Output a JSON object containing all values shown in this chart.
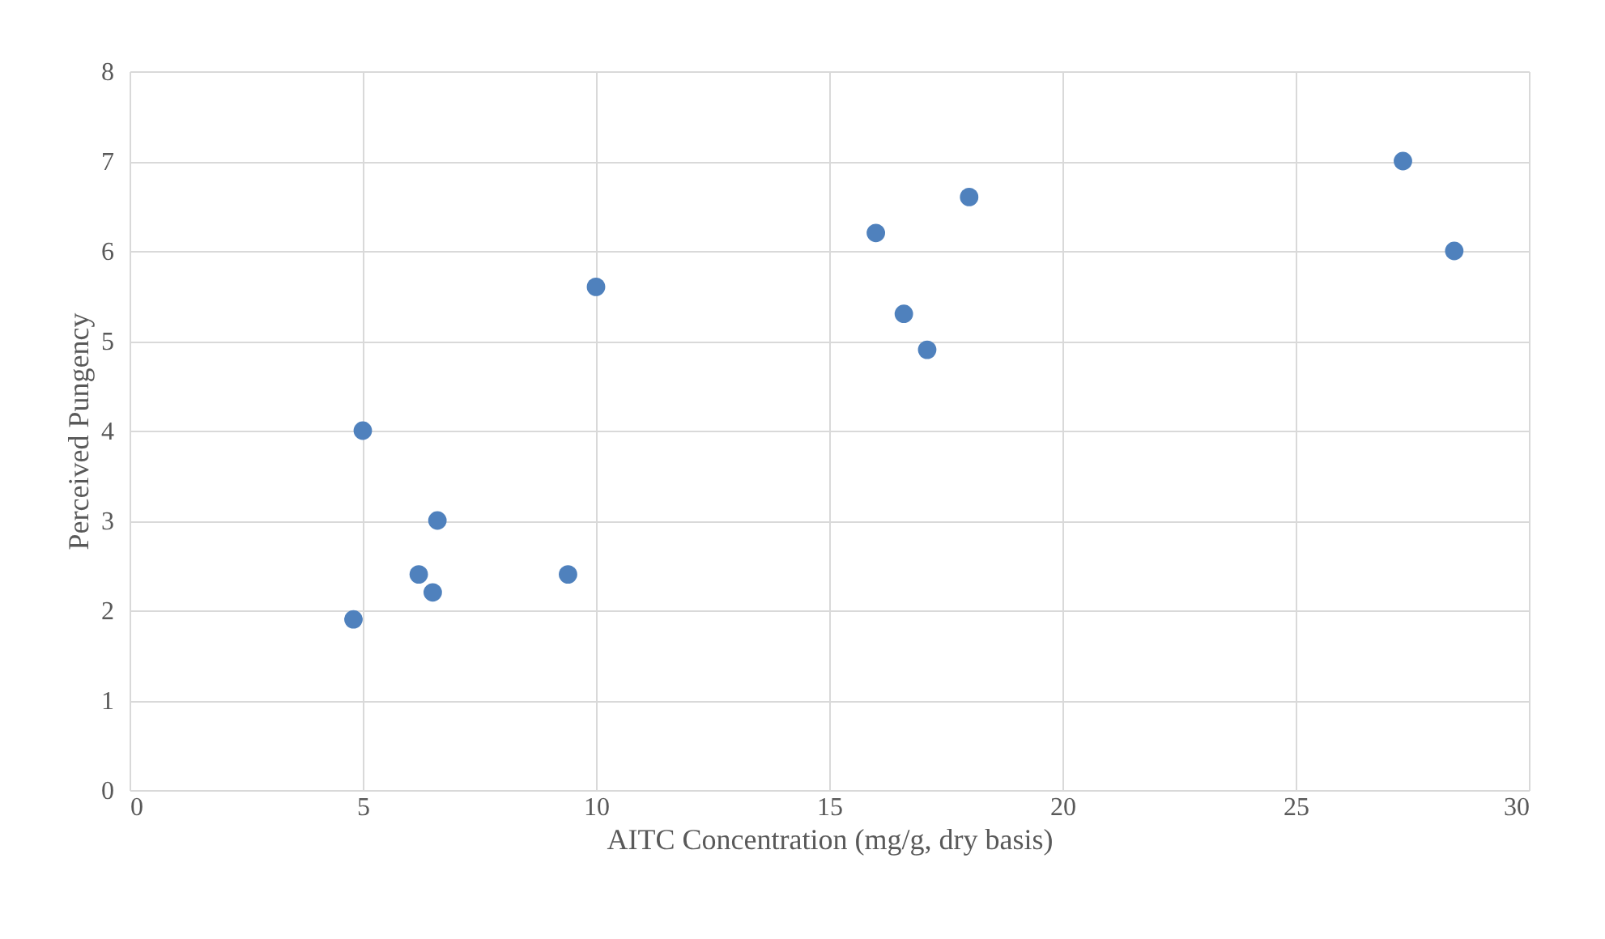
{
  "chart_data": {
    "type": "scatter",
    "xlabel": "AITC Concentration (mg/g, dry basis)",
    "ylabel": "Perceived Pungency",
    "x": [
      4.8,
      5.0,
      6.6,
      6.2,
      6.5,
      9.4,
      10.0,
      16.0,
      16.6,
      17.1,
      18.0,
      27.3,
      28.4
    ],
    "series": [
      {
        "color": "#4f81bd",
        "values": [
          1.9,
          4.0,
          3.0,
          2.4,
          2.2,
          2.4,
          5.6,
          6.2,
          5.3,
          4.9,
          6.6,
          7.0,
          6.0
        ]
      }
    ],
    "xlim": [
      0,
      30
    ],
    "xticks": [
      0,
      5,
      10,
      15,
      20,
      25,
      30
    ],
    "ylim": [
      0,
      8
    ],
    "yticks": [
      0,
      1,
      2,
      3,
      4,
      5,
      6,
      7,
      8
    ],
    "grid": true,
    "marker": "circle"
  }
}
